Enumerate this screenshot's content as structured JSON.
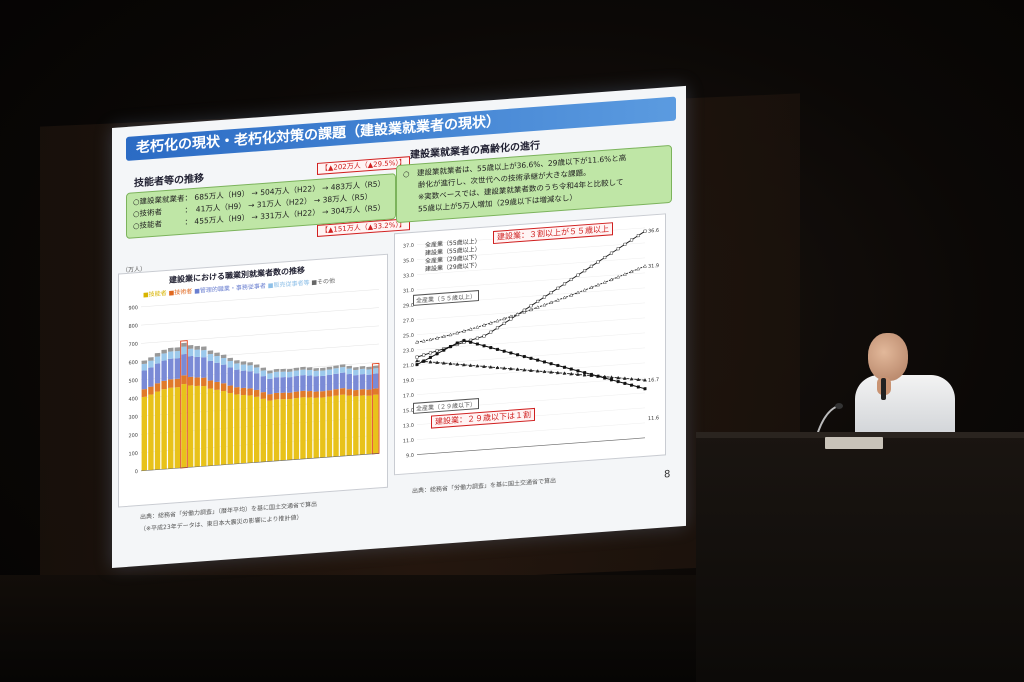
{
  "slide": {
    "title": "老朽化の現状・老朽化対策の課題（建設業就業者の現状）",
    "page_number": "8",
    "left": {
      "heading": "技能者等の推移",
      "rows": [
        "○建設業就業者： 685万人（H9） → 504万人（H22） → 483万人（R5）",
        "○技術者　　　：　41万人（H9） → 31万人（H22） → 38万人（R5）",
        "○技能者　　　： 455万人（H9） → 331万人（H22） → 304万人（R5）"
      ],
      "tag_top": "【▲202万人（▲29.5%）】",
      "tag_bottom": "【▲151万人（▲33.2%）】",
      "chart_title": "建設業における職業別就業者数の推移",
      "unit": "（万人）",
      "legend": [
        "■技能者",
        "■技術者",
        "■管理的職業・事務従事者",
        "■販売従事者等",
        "■その他"
      ],
      "source": "出典：総務省「労働力調査」（暦年平均）を基に国土交通省で算出",
      "note": "（※平成23年データは、東日本大震災の影響により推計値）"
    },
    "right": {
      "heading": "建設業就業者の高齢化の進行",
      "box_lines": [
        "○　建設業就業者は、55歳以上が36.6%、29歳以下が11.6%と高",
        "　　齢化が進行し、次世代への技術承継が大きな課題。",
        "　　※実数ベースでは、建設業就業者数のうち令和4年と比較して",
        "　　55歳以上が5万人増加（29歳以下は増減なし）"
      ],
      "legend": [
        "全産業（55歳以上）",
        "建設業（55歳以上）",
        "全産業（29歳以下）",
        "建設業（29歳以下）"
      ],
      "callout_1": "建設業：３割以上が５５歳以上",
      "callout_2": "建設業：２９歳以下は１割",
      "label_all55": "全産業（５５歳以上）",
      "label_all29": "全産業（２９歳以下）",
      "end_values": [
        "36.6",
        "31.9",
        "16.7",
        "11.6"
      ],
      "source": "出典：総務省「労働力調査」を基に国土交通省で算出"
    }
  },
  "chart_data": [
    {
      "type": "bar",
      "title": "建設業における職業別就業者数の推移",
      "ylabel": "（万人）",
      "ylim": [
        0,
        900
      ],
      "y_ticks": [
        0,
        100,
        200,
        300,
        400,
        500,
        600,
        700,
        800,
        900
      ],
      "series_names": [
        "技能者",
        "技術者",
        "管理的職業・事務従事者",
        "販売従事者等",
        "その他"
      ],
      "totals_approx": [
        604,
        619,
        640,
        655,
        663,
        663,
        685,
        670,
        662,
        657,
        632,
        618,
        604,
        584,
        568,
        559,
        552,
        537,
        517,
        498,
        504,
        502,
        499,
        503,
        505,
        500,
        493,
        492,
        495,
        499,
        503,
        492,
        482,
        485,
        479,
        483
      ],
      "highlighted": [
        "H9",
        "R5"
      ]
    },
    {
      "type": "line",
      "ylim": [
        9.0,
        37.0
      ],
      "y_ticks": [
        9.0,
        11.0,
        13.0,
        15.0,
        17.0,
        19.0,
        21.0,
        23.0,
        25.0,
        27.0,
        29.0,
        31.0,
        33.0,
        35.0,
        37.0
      ],
      "series": [
        {
          "name": "全産業（55歳以上）",
          "end_value": 31.9
        },
        {
          "name": "建設業（55歳以上）",
          "end_value": 36.6
        },
        {
          "name": "全産業（29歳以下）",
          "end_value": 16.7
        },
        {
          "name": "建設業（29歳以下）",
          "end_value": 11.6
        }
      ]
    }
  ]
}
